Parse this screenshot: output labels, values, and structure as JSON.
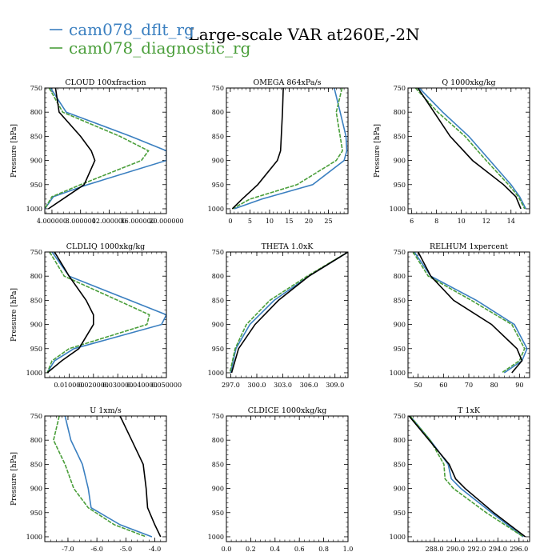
{
  "title": "Large-scale VAR at260E,-2N",
  "legend": [
    {
      "name": "cam078_dflt_rg",
      "color": "#3a7fc0"
    },
    {
      "name": "cam078_diagnostic_rg",
      "color": "#4a9e3a"
    }
  ],
  "reference_color": "#000000",
  "ylabel": "Pressure [hPa]",
  "chart_data": [
    {
      "type": "line",
      "title": "CLOUD  100xfraction",
      "ylabel": "Pressure [hPa]",
      "ylim": [
        1010,
        750
      ],
      "yticks": [
        750,
        800,
        850,
        900,
        950,
        1000
      ],
      "xlim": [
        0.03,
        0.2
      ],
      "xticks": [
        0.04,
        0.08,
        0.12,
        0.16,
        0.2
      ],
      "xticklabels": [
        "4.000000",
        "8.000000",
        "12.000000",
        "16.000000",
        "20.000000"
      ],
      "pressure": [
        750,
        800,
        850,
        880,
        900,
        950,
        975,
        1000
      ],
      "series": [
        {
          "name": "cam078_dflt_rg",
          "values": [
            0.038,
            0.06,
            0.15,
            0.2,
            0.2,
            0.09,
            0.042,
            0.03
          ]
        },
        {
          "name": "cam078_diagnostic_rg",
          "values": [
            0.036,
            0.055,
            0.135,
            0.175,
            0.165,
            0.08,
            0.04,
            0.03
          ]
        },
        {
          "values": [
            0.045,
            0.05,
            0.08,
            0.095,
            0.1,
            0.085,
            0.06,
            0.035
          ]
        }
      ]
    },
    {
      "type": "line",
      "title": "OMEGA  864xPa/s",
      "ylabel": "",
      "ylim": [
        1010,
        750
      ],
      "yticks": [
        750,
        800,
        850,
        900,
        950,
        1000
      ],
      "xlim": [
        -1,
        30
      ],
      "xticks": [
        0,
        5,
        10,
        15,
        20,
        25
      ],
      "xticklabels": [
        "0",
        "5",
        "10",
        "15",
        "20",
        "25"
      ],
      "pressure": [
        750,
        800,
        850,
        880,
        900,
        950,
        980,
        1000
      ],
      "series": [
        {
          "name": "cam078_dflt_rg",
          "values": [
            26.5,
            28,
            29.5,
            29.7,
            29,
            21,
            8,
            1
          ]
        },
        {
          "name": "cam078_diagnostic_rg",
          "values": [
            28.5,
            27,
            28,
            28.6,
            27,
            17,
            5,
            0.5
          ]
        },
        {
          "values": [
            13.5,
            13.3,
            13,
            12.8,
            12,
            7,
            3,
            0.5
          ]
        }
      ]
    },
    {
      "type": "line",
      "title": "Q  1000xkg/kg",
      "ylabel": "Pressure [hPa]",
      "ylim": [
        1010,
        750
      ],
      "yticks": [
        750,
        800,
        850,
        900,
        950,
        1000
      ],
      "xlim": [
        5.7,
        15.5
      ],
      "xticks": [
        6,
        8,
        10,
        12,
        14
      ],
      "xticklabels": [
        "6",
        "8",
        "10",
        "12",
        "14"
      ],
      "pressure": [
        750,
        800,
        850,
        900,
        950,
        975,
        1000
      ],
      "series": [
        {
          "name": "cam078_dflt_rg",
          "values": [
            6.6,
            8.5,
            10.6,
            12.3,
            14,
            14.7,
            15.2
          ]
        },
        {
          "name": "cam078_diagnostic_rg",
          "values": [
            6.3,
            8.1,
            10.3,
            12,
            13.8,
            14.6,
            15.1
          ]
        },
        {
          "values": [
            6.5,
            7.8,
            9.1,
            10.9,
            13.4,
            14.4,
            14.8
          ]
        }
      ]
    },
    {
      "type": "line",
      "title": "CLDLIQ  1000xkg/kg",
      "ylabel": "Pressure [hPa]",
      "ylim": [
        1010,
        750
      ],
      "yticks": [
        750,
        800,
        850,
        900,
        950,
        1000
      ],
      "xlim": [
        0,
        0.05
      ],
      "xticks": [
        0.01,
        0.02,
        0.03,
        0.04,
        0.05
      ],
      "xticklabels": [
        "0.010000",
        "0.020000",
        "0.030000",
        "0.040000",
        "0.050000"
      ],
      "pressure": [
        750,
        800,
        850,
        880,
        900,
        950,
        975,
        1000
      ],
      "series": [
        {
          "name": "cam078_dflt_rg",
          "values": [
            0.003,
            0.01,
            0.035,
            0.05,
            0.048,
            0.012,
            0.004,
            0.001
          ]
        },
        {
          "name": "cam078_diagnostic_rg",
          "values": [
            0.002,
            0.008,
            0.03,
            0.043,
            0.042,
            0.01,
            0.003,
            0.001
          ]
        },
        {
          "values": [
            0.004,
            0.01,
            0.017,
            0.02,
            0.02,
            0.014,
            0.007,
            0.001
          ]
        }
      ]
    },
    {
      "type": "line",
      "title": "THETA  1.0xK",
      "ylabel": "",
      "ylim": [
        1010,
        750
      ],
      "yticks": [
        750,
        800,
        850,
        900,
        950,
        1000
      ],
      "xlim": [
        296.5,
        310.5
      ],
      "xticks": [
        297,
        300,
        303,
        306,
        309
      ],
      "xticklabels": [
        "297.0",
        "300.0",
        "303.0",
        "306.0",
        "309.0"
      ],
      "pressure": [
        750,
        800,
        850,
        900,
        950,
        1000
      ],
      "series": [
        {
          "name": "cam078_dflt_rg",
          "values": [
            310.5,
            306,
            302,
            299.2,
            297.6,
            297
          ]
        },
        {
          "name": "cam078_diagnostic_rg",
          "values": [
            310.5,
            305.8,
            301.5,
            298.8,
            297.5,
            296.9
          ]
        },
        {
          "values": [
            310.5,
            306,
            302.5,
            299.8,
            297.9,
            297.1
          ]
        }
      ]
    },
    {
      "type": "line",
      "title": "RELHUM  1xpercent",
      "ylabel": "",
      "ylim": [
        1010,
        750
      ],
      "yticks": [
        750,
        800,
        850,
        900,
        950,
        1000
      ],
      "xlim": [
        46,
        94
      ],
      "xticks": [
        50,
        60,
        70,
        80,
        90
      ],
      "xticklabels": [
        "50",
        "60",
        "70",
        "80",
        "90"
      ],
      "pressure": [
        750,
        800,
        850,
        900,
        950,
        975,
        1000
      ],
      "series": [
        {
          "name": "cam078_dflt_rg",
          "values": [
            48.5,
            55,
            73,
            88,
            93,
            91,
            84
          ]
        },
        {
          "name": "cam078_diagnostic_rg",
          "values": [
            48,
            54,
            71,
            87,
            92,
            90,
            83
          ]
        },
        {
          "values": [
            50,
            55,
            64,
            79,
            89,
            91,
            87
          ]
        }
      ]
    },
    {
      "type": "line",
      "title": "U  1xm/s",
      "ylabel": "Pressure [hPa]",
      "ylim": [
        1010,
        750
      ],
      "yticks": [
        750,
        800,
        850,
        900,
        950,
        1000
      ],
      "xlim": [
        -7.8,
        -3.6
      ],
      "xticks": [
        -7,
        -6,
        -5,
        -4
      ],
      "xticklabels": [
        "-7.0",
        "-6.0",
        "-5.0",
        "-4.0"
      ],
      "pressure": [
        750,
        800,
        850,
        900,
        940,
        975,
        1000
      ],
      "series": [
        {
          "name": "cam078_dflt_rg",
          "values": [
            -7.1,
            -6.9,
            -6.5,
            -6.3,
            -6.2,
            -5.2,
            -4.1
          ]
        },
        {
          "name": "cam078_diagnostic_rg",
          "values": [
            -7.3,
            -7.5,
            -7.1,
            -6.8,
            -6.3,
            -5.4,
            -4.3
          ]
        },
        {
          "values": [
            -5.2,
            -4.8,
            -4.4,
            -4.3,
            -4.25,
            -4.0,
            -3.8
          ]
        }
      ]
    },
    {
      "type": "line",
      "title": "CLDICE  1000xkg/kg",
      "ylabel": "",
      "ylim": [
        1010,
        750
      ],
      "yticks": [
        750,
        800,
        850,
        900,
        950,
        1000
      ],
      "xlim": [
        0,
        1
      ],
      "xticks": [
        0,
        0.2,
        0.4,
        0.6,
        0.8,
        1
      ],
      "xticklabels": [
        "0.0",
        "0.2",
        "0.4",
        "0.6",
        "0.8",
        "1.0"
      ],
      "pressure": [],
      "series": []
    },
    {
      "type": "line",
      "title": "T  1xK",
      "ylabel": "",
      "ylim": [
        1010,
        750
      ],
      "yticks": [
        750,
        800,
        850,
        900,
        950,
        1000
      ],
      "xlim": [
        285.5,
        297
      ],
      "xticks": [
        288,
        290,
        292,
        294,
        296
      ],
      "xticklabels": [
        "288.0",
        "290.0",
        "292.0",
        "294.0",
        "296.0"
      ],
      "pressure": [
        750,
        800,
        850,
        880,
        900,
        950,
        1000
      ],
      "series": [
        {
          "name": "cam078_dflt_rg",
          "values": [
            285.7,
            287.6,
            289.3,
            289.6,
            290.5,
            293.4,
            296.4
          ]
        },
        {
          "name": "cam078_diagnostic_rg",
          "values": [
            285.7,
            287.6,
            288.9,
            289.0,
            289.8,
            292.9,
            296.4
          ]
        },
        {
          "values": [
            285.6,
            287.5,
            289.4,
            290.0,
            290.9,
            293.6,
            296.6
          ]
        }
      ]
    }
  ]
}
